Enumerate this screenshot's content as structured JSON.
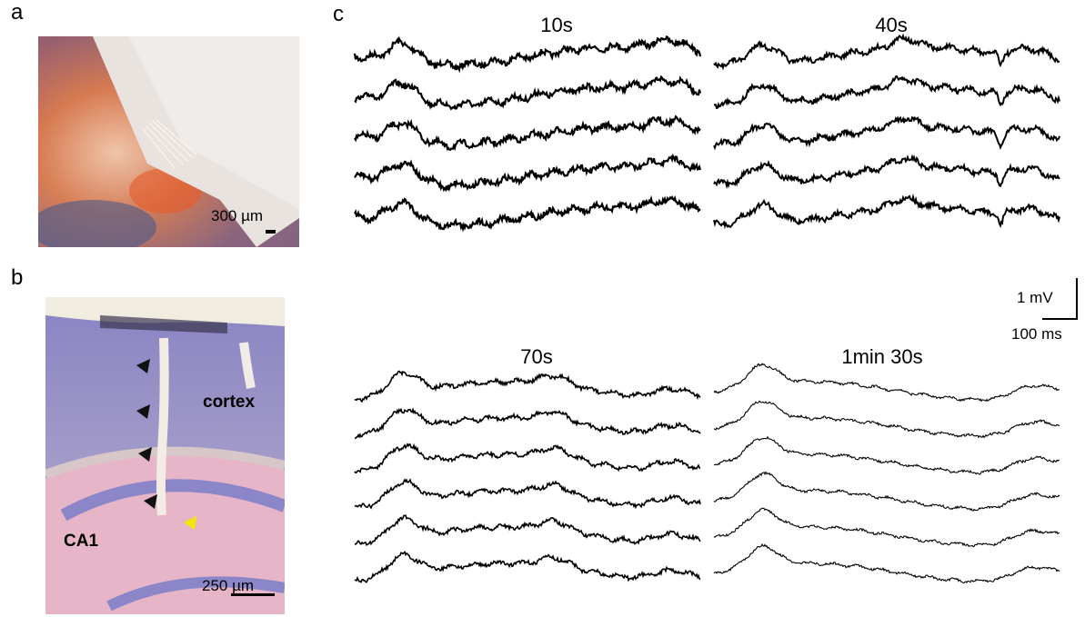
{
  "figure": {
    "panel_a": {
      "letter": "a",
      "scale_bar_label": "300 µm"
    },
    "panel_b": {
      "letter": "b",
      "label_cortex": "cortex",
      "label_ca1": "CA1",
      "scale_bar_label": "250 µm"
    },
    "panel_c": {
      "letter": "c",
      "groups": [
        {
          "title": "10s",
          "traces": 5
        },
        {
          "title": "40s",
          "traces": 5
        },
        {
          "title": "70s",
          "traces": 6
        },
        {
          "title": "1min 30s",
          "traces": 6
        }
      ],
      "scale_voltage": "1 mV",
      "scale_time": "100 ms"
    }
  }
}
